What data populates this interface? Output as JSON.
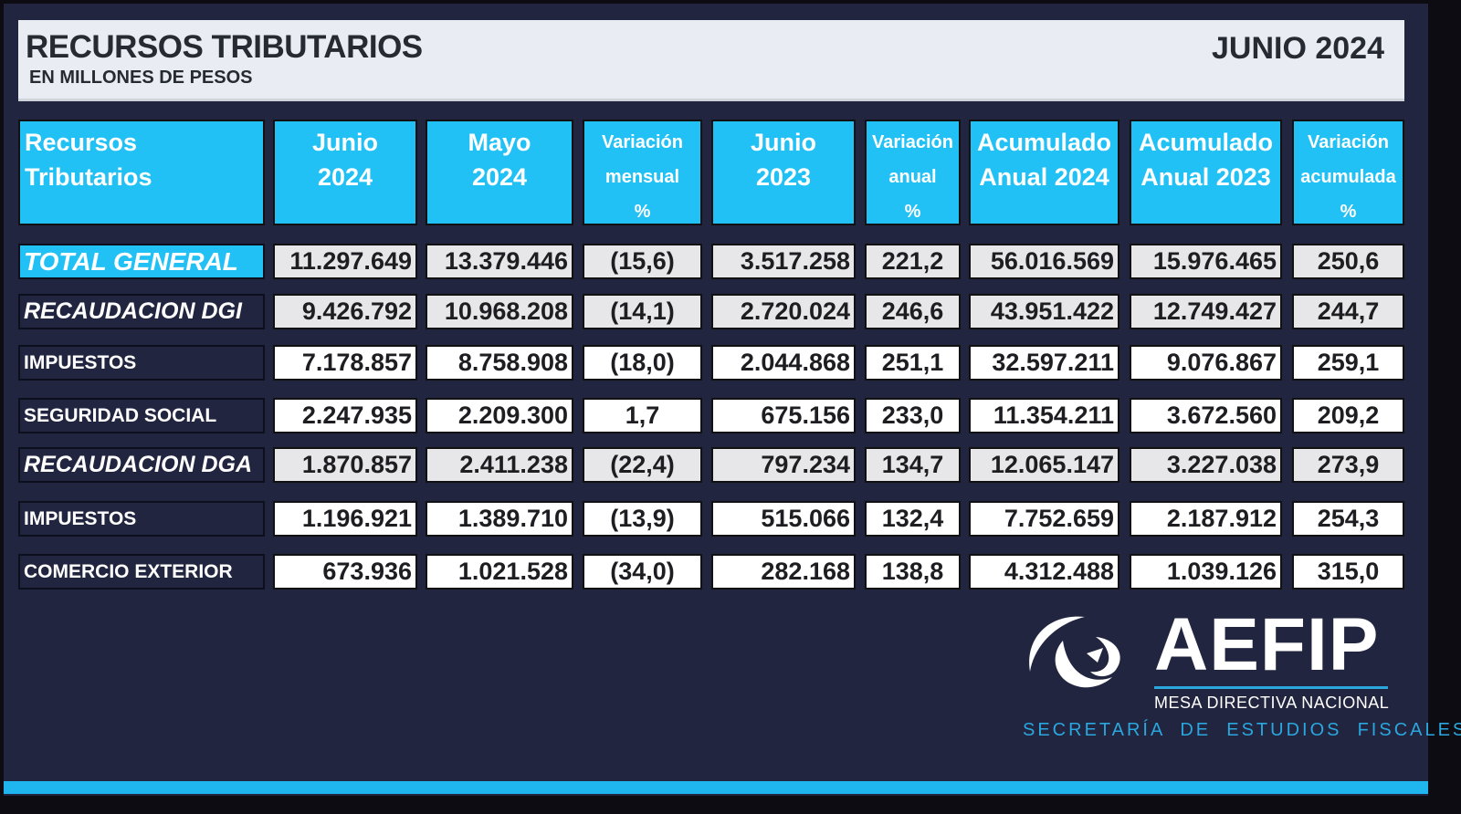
{
  "header": {
    "title": "RECURSOS TRIBUTARIOS",
    "subtitle": "EN MILLONES DE PESOS",
    "period": "JUNIO 2024"
  },
  "columns": [
    {
      "lines": [
        "Recursos",
        "Tributarios"
      ],
      "size": "big"
    },
    {
      "lines": [
        "Junio",
        "2024"
      ],
      "size": "big"
    },
    {
      "lines": [
        "Mayo",
        "2024"
      ],
      "size": "big"
    },
    {
      "lines": [
        "Variación",
        "mensual",
        "%"
      ],
      "size": "small"
    },
    {
      "lines": [
        "Junio",
        "2023"
      ],
      "size": "big"
    },
    {
      "lines": [
        "Variación",
        "anual",
        "%"
      ],
      "size": "small"
    },
    {
      "lines": [
        "Acumulado",
        "Anual 2024"
      ],
      "size": "big"
    },
    {
      "lines": [
        "Acumulado",
        "Anual 2023"
      ],
      "size": "big"
    },
    {
      "lines": [
        "Variación",
        "acumulada",
        "%"
      ],
      "size": "small"
    }
  ],
  "rows": [
    {
      "label": "TOTAL GENERAL",
      "style": "total",
      "values": [
        "11.297.649",
        "13.379.446",
        "(15,6)",
        "3.517.258",
        "221,2",
        "56.016.569",
        "15.976.465",
        "250,6"
      ]
    },
    {
      "label": "RECAUDACION DGI",
      "style": "big",
      "values": [
        "9.426.792",
        "10.968.208",
        "(14,1)",
        "2.720.024",
        "246,6",
        "43.951.422",
        "12.749.427",
        "244,7"
      ]
    },
    {
      "label": "IMPUESTOS",
      "style": "plain",
      "values": [
        "7.178.857",
        "8.758.908",
        "(18,0)",
        "2.044.868",
        "251,1",
        "32.597.211",
        "9.076.867",
        "259,1"
      ]
    },
    {
      "label": "SEGURIDAD SOCIAL",
      "style": "plain",
      "values": [
        "2.247.935",
        "2.209.300",
        "1,7",
        "675.156",
        "233,0",
        "11.354.211",
        "3.672.560",
        "209,2"
      ]
    },
    {
      "label": "RECAUDACION DGA",
      "style": "big",
      "values": [
        "1.870.857",
        "2.411.238",
        "(22,4)",
        "797.234",
        "134,7",
        "12.065.147",
        "3.227.038",
        "273,9"
      ]
    },
    {
      "label": "IMPUESTOS",
      "style": "plain",
      "values": [
        "1.196.921",
        "1.389.710",
        "(13,9)",
        "515.066",
        "132,4",
        "7.752.659",
        "2.187.912",
        "254,3"
      ]
    },
    {
      "label": "COMERCIO EXTERIOR",
      "style": "plain",
      "values": [
        "673.936",
        "1.021.528",
        "(34,0)",
        "282.168",
        "138,8",
        "4.312.488",
        "1.039.126",
        "315,0"
      ]
    }
  ],
  "logo": {
    "name": "AEFIP",
    "tagline": "MESA DIRECTIVA NACIONAL",
    "secretaria": "SECRETARÍA  DE  ESTUDIOS  FISCALES"
  },
  "colors": {
    "background": "#21253f",
    "accent": "#22c1f5",
    "gray_cell": "#e7e7ea",
    "white_cell": "#ffffff"
  }
}
